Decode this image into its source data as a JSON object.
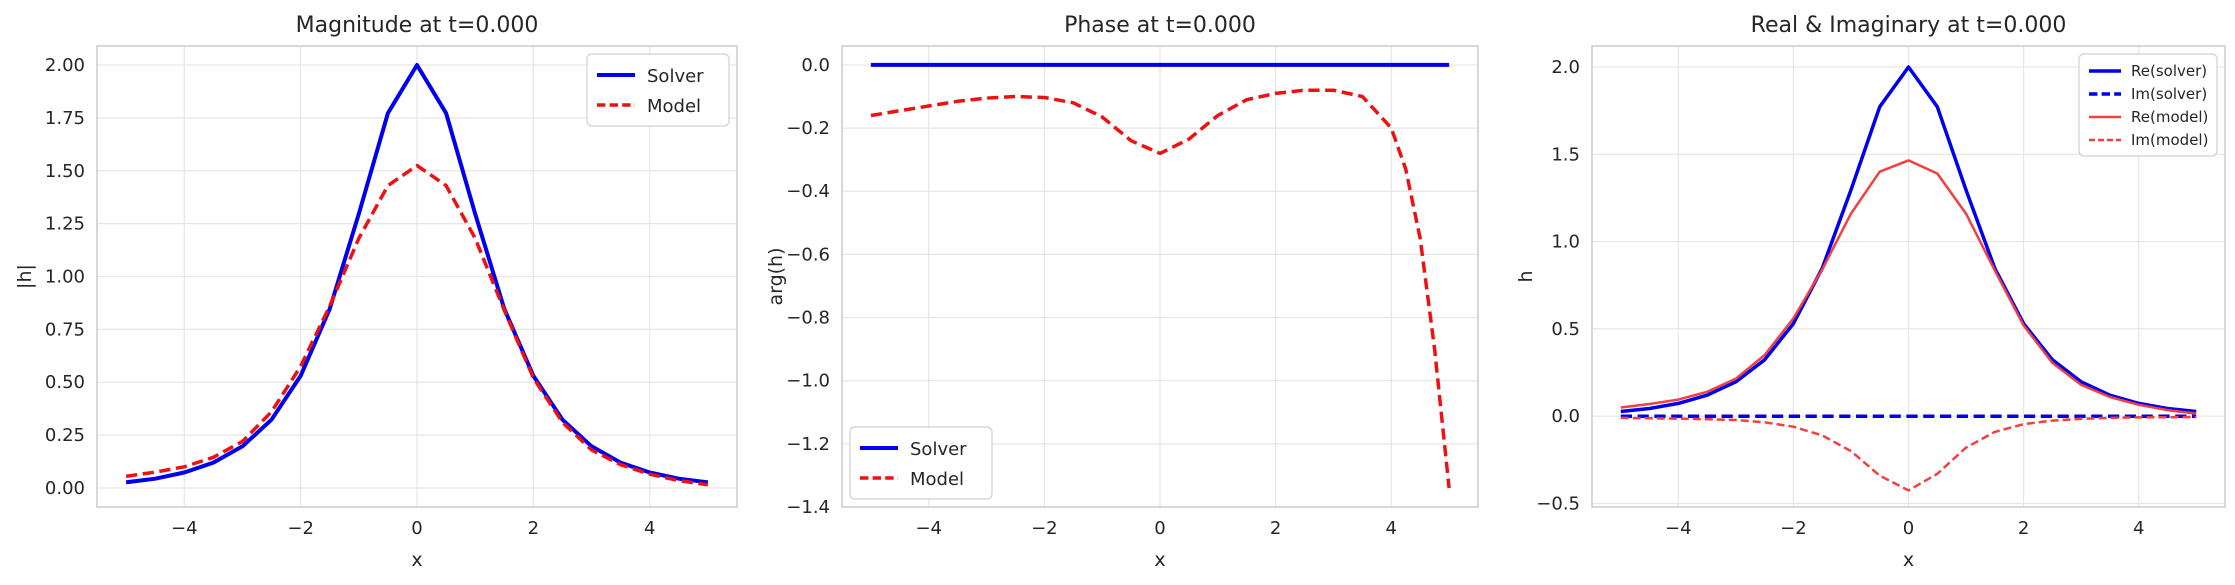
{
  "chart_data": [
    {
      "type": "line",
      "title": "Magnitude at t=0.000",
      "xlabel": "x",
      "ylabel": "|h|",
      "xlim": [
        -5.5,
        5.5
      ],
      "ylim": [
        -0.09,
        2.09
      ],
      "xticks": [
        -4,
        -2,
        0,
        2,
        4
      ],
      "xtick_labels": [
        "−4",
        "−2",
        "0",
        "2",
        "4"
      ],
      "yticks": [
        0.0,
        0.25,
        0.5,
        0.75,
        1.0,
        1.25,
        1.5,
        1.75,
        2.0
      ],
      "ytick_labels": [
        "0.00",
        "0.25",
        "0.50",
        "0.75",
        "1.00",
        "1.25",
        "1.50",
        "1.75",
        "2.00"
      ],
      "grid": true,
      "legend": "top-right",
      "x": [
        -5,
        -4.5,
        -4,
        -3.5,
        -3,
        -2.5,
        -2,
        -1.5,
        -1,
        -0.5,
        0,
        0.5,
        1,
        1.5,
        2,
        2.5,
        3,
        3.5,
        4,
        4.5,
        5
      ],
      "series": [
        {
          "name": "Solver",
          "color": "#0000ee",
          "dash": "solid",
          "width": 4,
          "values": [
            0.027,
            0.044,
            0.073,
            0.12,
            0.197,
            0.323,
            0.53,
            0.847,
            1.296,
            1.772,
            2.0,
            1.772,
            1.296,
            0.847,
            0.53,
            0.323,
            0.197,
            0.12,
            0.073,
            0.044,
            0.027
          ]
        },
        {
          "name": "Model",
          "color": "#ee1111",
          "dash": "dashed",
          "width": 3.5,
          "values": [
            0.055,
            0.075,
            0.1,
            0.145,
            0.22,
            0.36,
            0.575,
            0.86,
            1.18,
            1.43,
            1.525,
            1.43,
            1.18,
            0.84,
            0.52,
            0.31,
            0.18,
            0.11,
            0.065,
            0.035,
            0.015
          ]
        }
      ]
    },
    {
      "type": "line",
      "title": "Phase at t=0.000",
      "xlabel": "x",
      "ylabel": "arg(h)",
      "xlim": [
        -5.5,
        5.5
      ],
      "ylim": [
        -1.4,
        0.06
      ],
      "xticks": [
        -4,
        -2,
        0,
        2,
        4
      ],
      "xtick_labels": [
        "−4",
        "−2",
        "0",
        "2",
        "4"
      ],
      "yticks": [
        -1.4,
        -1.2,
        -1.0,
        -0.8,
        -0.6,
        -0.4,
        -0.2,
        0.0
      ],
      "ytick_labels": [
        "−1.4",
        "−1.2",
        "−1.0",
        "−0.8",
        "−0.6",
        "−0.4",
        "−0.2",
        "0.0"
      ],
      "grid": true,
      "legend": "bottom-left",
      "x": [
        -5,
        -4.5,
        -4,
        -3.5,
        -3,
        -2.5,
        -2,
        -1.5,
        -1,
        -0.5,
        0,
        0.5,
        1,
        1.5,
        2,
        2.5,
        3,
        3.5,
        4,
        4.25,
        4.5,
        4.75,
        5
      ],
      "series": [
        {
          "name": "Solver",
          "color": "#0000ee",
          "dash": "solid",
          "width": 4,
          "values": [
            0.0,
            0.0,
            0.0,
            0.0,
            0.0,
            0.0,
            0.0,
            0.0,
            0.0,
            0.0,
            0.0,
            0.0,
            0.0,
            0.0,
            0.0,
            0.0,
            0.0,
            0.0,
            0.0,
            0.0,
            0.0,
            0.0,
            0.0
          ]
        },
        {
          "name": "Model",
          "color": "#ee1111",
          "dash": "dashed",
          "width": 3.5,
          "values": [
            -0.16,
            -0.145,
            -0.13,
            -0.115,
            -0.105,
            -0.1,
            -0.103,
            -0.12,
            -0.165,
            -0.24,
            -0.28,
            -0.235,
            -0.16,
            -0.11,
            -0.09,
            -0.08,
            -0.08,
            -0.1,
            -0.2,
            -0.33,
            -0.55,
            -0.9,
            -1.34
          ]
        }
      ]
    },
    {
      "type": "line",
      "title": "Real & Imaginary at t=0.000",
      "xlabel": "x",
      "ylabel": "h",
      "xlim": [
        -5.5,
        5.5
      ],
      "ylim": [
        -0.52,
        2.12
      ],
      "xticks": [
        -4,
        -2,
        0,
        2,
        4
      ],
      "xtick_labels": [
        "−4",
        "−2",
        "0",
        "2",
        "4"
      ],
      "yticks": [
        -0.5,
        0.0,
        0.5,
        1.0,
        1.5,
        2.0
      ],
      "ytick_labels": [
        "−0.5",
        "0.0",
        "0.5",
        "1.0",
        "1.5",
        "2.0"
      ],
      "grid": true,
      "legend": "top-right",
      "x": [
        -5,
        -4.5,
        -4,
        -3.5,
        -3,
        -2.5,
        -2,
        -1.5,
        -1,
        -0.5,
        0,
        0.5,
        1,
        1.5,
        2,
        2.5,
        3,
        3.5,
        4,
        4.5,
        5
      ],
      "series": [
        {
          "name": "Re(solver)",
          "color": "#0000ee",
          "dash": "solid",
          "width": 3.5,
          "values": [
            0.027,
            0.044,
            0.073,
            0.12,
            0.197,
            0.323,
            0.53,
            0.847,
            1.296,
            1.772,
            2.0,
            1.772,
            1.296,
            0.847,
            0.53,
            0.323,
            0.197,
            0.12,
            0.073,
            0.044,
            0.027
          ]
        },
        {
          "name": "Im(solver)",
          "color": "#0000ee",
          "dash": "dashed",
          "width": 3.5,
          "values": [
            0.0,
            0.0,
            0.0,
            0.0,
            0.0,
            0.0,
            0.0,
            0.0,
            0.0,
            0.0,
            0.0,
            0.0,
            0.0,
            0.0,
            0.0,
            0.0,
            0.0,
            0.0,
            0.0,
            0.0,
            0.0
          ]
        },
        {
          "name": "Re(model)",
          "color": "#f04040",
          "dash": "solid",
          "width": 2.5,
          "values": [
            0.05,
            0.07,
            0.095,
            0.14,
            0.215,
            0.35,
            0.56,
            0.84,
            1.16,
            1.4,
            1.465,
            1.39,
            1.16,
            0.835,
            0.52,
            0.305,
            0.18,
            0.11,
            0.065,
            0.035,
            0.015
          ]
        },
        {
          "name": "Im(model)",
          "color": "#f04040",
          "dash": "dashed",
          "width": 2.5,
          "values": [
            -0.01,
            -0.012,
            -0.014,
            -0.017,
            -0.022,
            -0.035,
            -0.06,
            -0.11,
            -0.2,
            -0.34,
            -0.425,
            -0.33,
            -0.18,
            -0.09,
            -0.045,
            -0.025,
            -0.015,
            -0.01,
            -0.007,
            -0.006,
            -0.005
          ]
        }
      ]
    }
  ]
}
